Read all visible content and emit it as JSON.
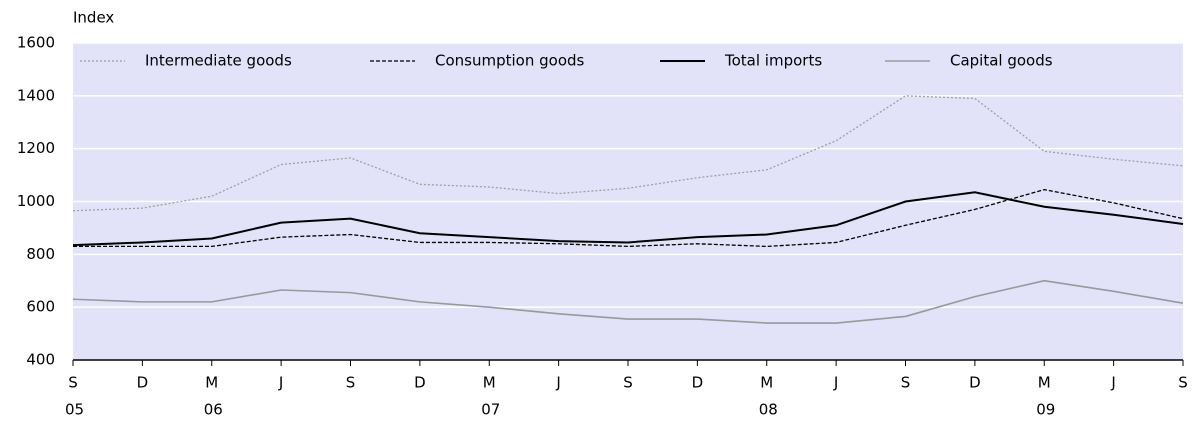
{
  "chart_data": {
    "type": "line",
    "y_label": "Index",
    "categories": [
      "S",
      "D",
      "M",
      "J",
      "S",
      "D",
      "M",
      "J",
      "S",
      "D",
      "M",
      "J",
      "S",
      "D",
      "M",
      "J",
      "S"
    ],
    "years": [
      "05",
      null,
      "06",
      null,
      null,
      null,
      "07",
      null,
      null,
      null,
      "08",
      null,
      null,
      null,
      "09",
      null,
      null
    ],
    "ylim": [
      400,
      1600
    ],
    "yticks": [
      400,
      600,
      800,
      1000,
      1200,
      1400,
      1600
    ],
    "grid": true,
    "legend": "top",
    "series": [
      {
        "name": "Intermediate goods",
        "color": "#a0a0a0",
        "style": "dotted",
        "width": 1.3,
        "values": [
          965,
          975,
          1020,
          1140,
          1165,
          1065,
          1055,
          1030,
          1050,
          1090,
          1120,
          1230,
          1400,
          1390,
          1190,
          1160,
          1135
        ]
      },
      {
        "name": "Consumption goods",
        "color": "#000000",
        "style": "dashed",
        "width": 1.3,
        "values": [
          830,
          830,
          830,
          865,
          875,
          845,
          845,
          840,
          830,
          840,
          830,
          845,
          910,
          970,
          1045,
          995,
          935
        ]
      },
      {
        "name": "Total imports",
        "color": "#000000",
        "style": "solid",
        "width": 2,
        "values": [
          835,
          845,
          860,
          920,
          935,
          880,
          865,
          850,
          845,
          865,
          875,
          910,
          1000,
          1035,
          980,
          950,
          915
        ]
      },
      {
        "name": "Capital goods",
        "color": "#999999",
        "style": "solid",
        "width": 1.6,
        "values": [
          630,
          620,
          620,
          665,
          655,
          620,
          600,
          575,
          555,
          555,
          540,
          540,
          565,
          640,
          700,
          660,
          615
        ]
      }
    ]
  }
}
